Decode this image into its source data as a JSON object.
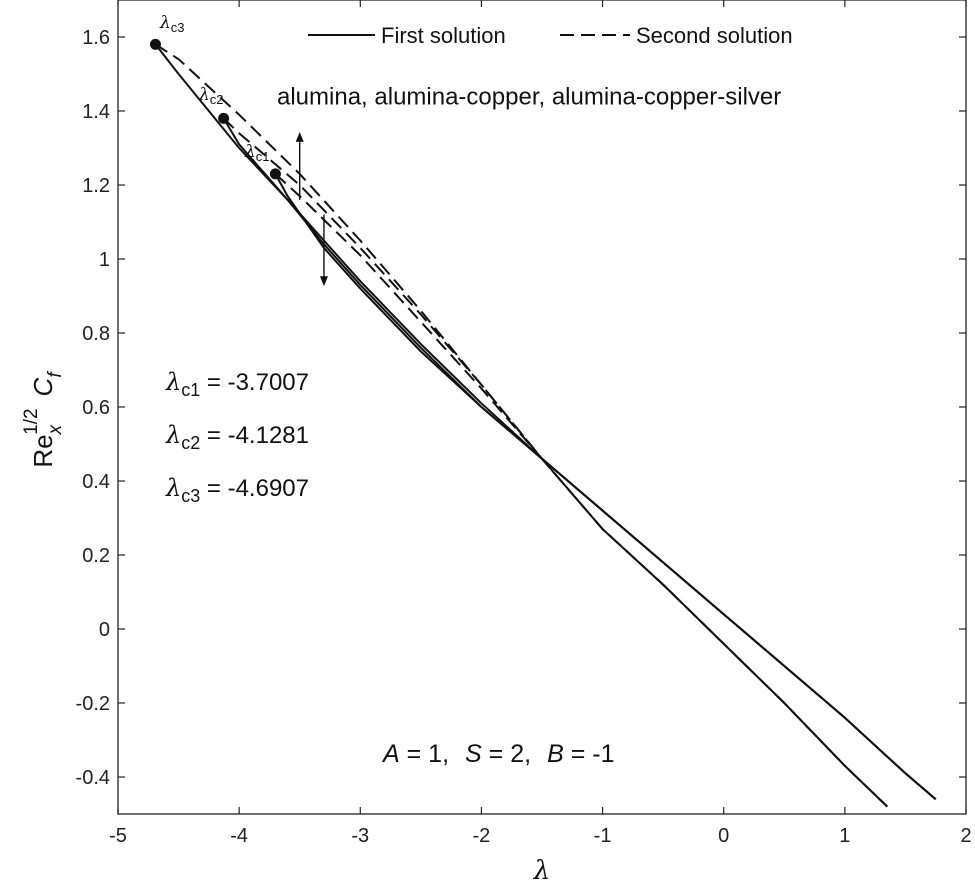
{
  "chart_data": {
    "type": "line",
    "xlabel": "λ",
    "ylabel": {
      "base": "Re",
      "sup": "1/2",
      "sub": "x",
      "symbol": "C",
      "symbol_sub": "f"
    },
    "xlim": [
      -5,
      2
    ],
    "ylim": [
      -0.5,
      1.7
    ],
    "xticks": [
      -5,
      -4,
      -3,
      -2,
      -1,
      0,
      1,
      2
    ],
    "yticks": [
      -0.4,
      -0.2,
      0,
      0.2,
      0.4,
      0.6,
      0.8,
      1,
      1.2,
      1.4,
      1.6
    ],
    "xtick_labels": [
      "-5",
      "-4",
      "-3",
      "-2",
      "-1",
      "0",
      "1",
      "2"
    ],
    "ytick_labels": [
      "-0.4",
      "-0.2",
      "0",
      "0.2",
      "0.4",
      "0.6",
      "0.8",
      "1",
      "1.2",
      "1.4",
      "1.6"
    ],
    "grid": false,
    "legend": {
      "placement": "top",
      "entries": [
        {
          "label": "First solution",
          "style": "solid"
        },
        {
          "label": "Second solution",
          "style": "dashed"
        }
      ]
    },
    "annotations": {
      "fluids": "alumina, alumina-copper, alumina-copper-silver",
      "params": [
        {
          "sym": "A",
          "val": " = 1,"
        },
        {
          "sym": "S",
          "val": " = 2,"
        },
        {
          "sym": "B",
          "val": " = -1"
        }
      ],
      "critical": [
        {
          "sym": "λ",
          "sub": "c1",
          "val": " = -3.7007"
        },
        {
          "sym": "λ",
          "sub": "c2",
          "val": " = -4.1281"
        },
        {
          "sym": "λ",
          "sub": "c3",
          "val": " = -4.6907"
        }
      ],
      "point_labels": [
        {
          "sym": "λ",
          "sub": "c1"
        },
        {
          "sym": "λ",
          "sub": "c2"
        },
        {
          "sym": "λ",
          "sub": "c3"
        }
      ]
    },
    "critical_points": [
      {
        "x": -3.7007,
        "y": 1.23
      },
      {
        "x": -4.1281,
        "y": 1.38
      },
      {
        "x": -4.6907,
        "y": 1.58
      }
    ],
    "series": [
      {
        "style": "solid",
        "x": [
          -3.7007,
          -3.6,
          -3.3,
          -3.0,
          -2.5,
          -2.0,
          -1.5,
          -1.0,
          -0.5,
          0.0,
          0.5,
          1.0,
          1.5,
          1.75
        ],
        "y": [
          1.23,
          1.17,
          1.03,
          0.92,
          0.75,
          0.6,
          0.46,
          0.32,
          0.18,
          0.04,
          -0.1,
          -0.24,
          -0.39,
          -0.46
        ]
      },
      {
        "style": "solid",
        "x": [
          -4.1281,
          -4.0,
          -3.6,
          -3.3,
          -3.0,
          -2.5,
          -2.0,
          -1.5,
          -1.0,
          -0.5,
          0.0,
          0.5,
          1.0,
          1.5,
          1.75
        ],
        "y": [
          1.38,
          1.31,
          1.16,
          1.04,
          0.93,
          0.76,
          0.6,
          0.46,
          0.32,
          0.18,
          0.04,
          -0.1,
          -0.24,
          -0.39,
          -0.46
        ]
      },
      {
        "style": "solid",
        "x": [
          -4.6907,
          -4.5,
          -4.0,
          -3.6,
          -3.3,
          -3.0,
          -2.5,
          -2.0,
          -1.5,
          -1.0,
          -0.5,
          0.0,
          0.5,
          1.0,
          1.5,
          1.75
        ],
        "y": [
          1.58,
          1.5,
          1.3,
          1.16,
          1.05,
          0.94,
          0.77,
          0.61,
          0.46,
          0.32,
          0.18,
          0.04,
          -0.1,
          -0.24,
          -0.39,
          -0.46
        ]
      },
      {
        "style": "dashed",
        "x": [
          -3.7007,
          -3.5,
          -3.0,
          -2.5,
          -2.0,
          -1.5,
          -1.0,
          -0.5,
          0.0,
          0.5,
          1.0,
          1.35
        ],
        "y": [
          1.23,
          1.17,
          1.01,
          0.83,
          0.65,
          0.46,
          0.27,
          0.12,
          -0.04,
          -0.2,
          -0.37,
          -0.48
        ]
      },
      {
        "style": "dashed",
        "x": [
          -4.1281,
          -4.0,
          -3.5,
          -3.0,
          -2.5,
          -2.0,
          -1.5,
          -1.0,
          -0.5,
          0.0,
          0.5,
          1.0,
          1.35
        ],
        "y": [
          1.38,
          1.34,
          1.2,
          1.03,
          0.85,
          0.66,
          0.46,
          0.27,
          0.12,
          -0.04,
          -0.2,
          -0.37,
          -0.48
        ]
      },
      {
        "style": "dashed",
        "x": [
          -4.6907,
          -4.5,
          -4.0,
          -3.5,
          -3.0,
          -2.5,
          -2.0,
          -1.5,
          -1.0,
          -0.5,
          0.0,
          0.5,
          1.0,
          1.35
        ],
        "y": [
          1.58,
          1.54,
          1.39,
          1.23,
          1.05,
          0.86,
          0.66,
          0.46,
          0.27,
          0.12,
          -0.04,
          -0.2,
          -0.37,
          -0.48
        ]
      }
    ],
    "arrows": [
      {
        "x": -3.5,
        "from": 1.16,
        "to": 1.33
      },
      {
        "x": -3.3,
        "from": 1.12,
        "to": 0.94
      }
    ]
  }
}
